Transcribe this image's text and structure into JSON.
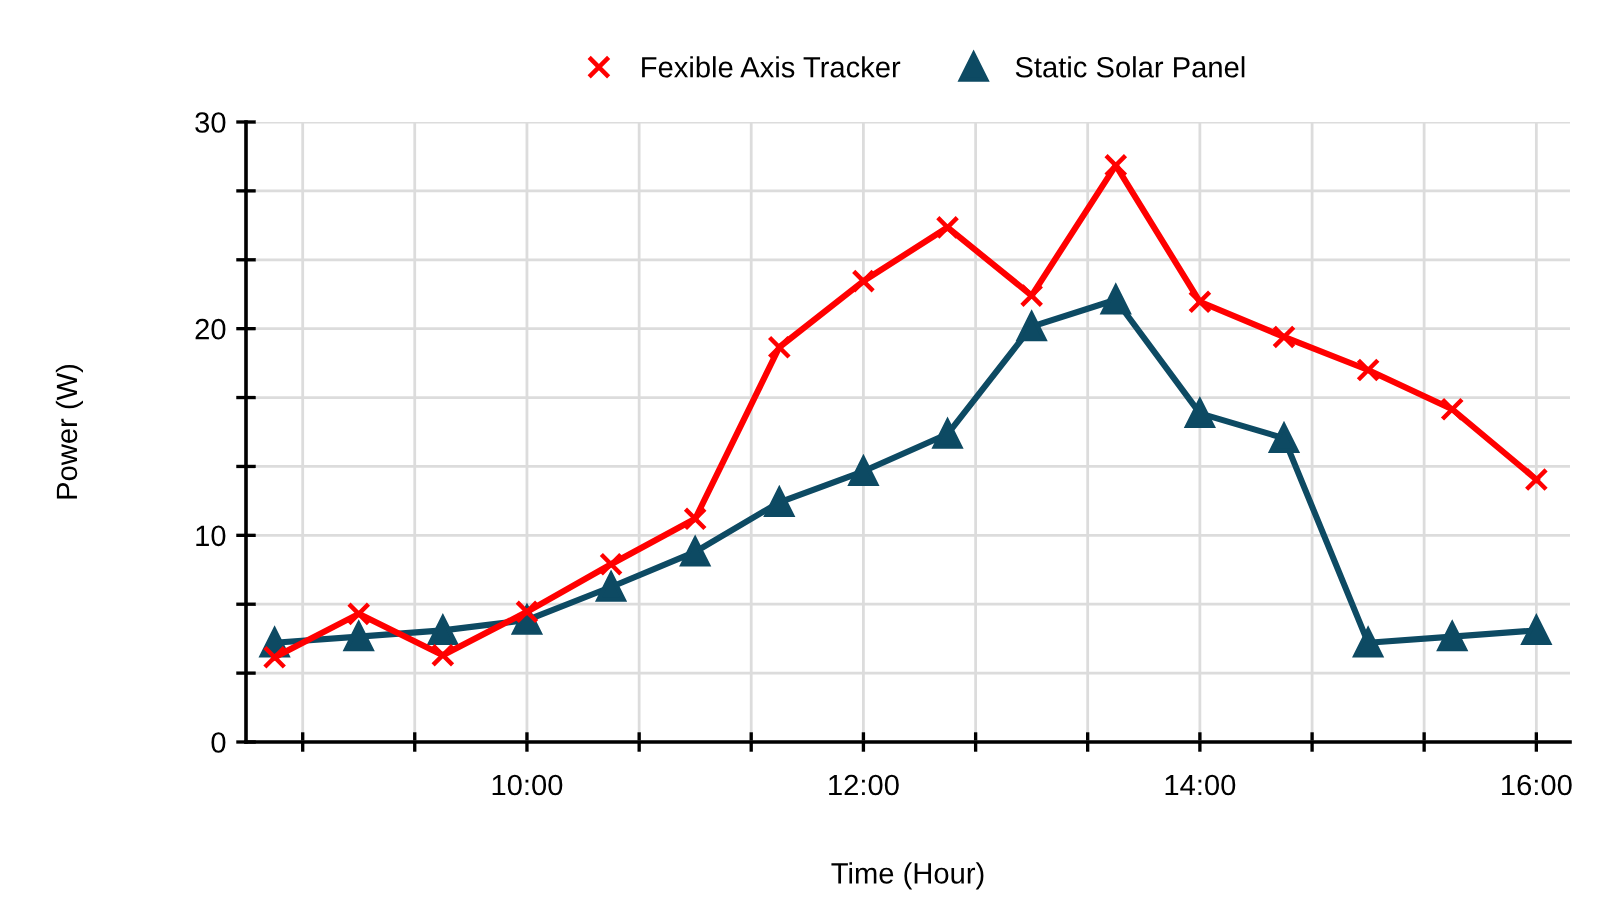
{
  "chart_data": {
    "type": "line",
    "xlabel": "Time (Hour)",
    "ylabel": "Power (W)",
    "x": [
      8.5,
      9,
      9.5,
      10,
      10.5,
      11,
      11.5,
      12,
      12.5,
      13,
      13.5,
      14,
      14.5,
      15,
      15.5,
      16
    ],
    "series": [
      {
        "name": "Fexible Axis Tracker",
        "color": "#ff0000",
        "marker": "cross",
        "values": [
          4.1,
          6.2,
          4.2,
          6.3,
          8.6,
          10.8,
          19.1,
          22.3,
          24.9,
          21.6,
          27.9,
          21.3,
          19.6,
          18.0,
          16.1,
          12.7
        ]
      },
      {
        "name": "Static Solar Panel",
        "color": "#0d4a63",
        "marker": "triangle",
        "values": [
          4.8,
          5.1,
          5.4,
          5.9,
          7.5,
          9.2,
          11.6,
          13.1,
          14.9,
          20.1,
          21.4,
          15.9,
          14.7,
          4.8,
          5.1,
          5.4
        ]
      }
    ],
    "xlim": [
      8.33,
      16.2
    ],
    "xticks": [
      {
        "value": 8.667,
        "label": null
      },
      {
        "value": 9.333,
        "label": null
      },
      {
        "value": 10,
        "label": "10:00"
      },
      {
        "value": 10.667,
        "label": null
      },
      {
        "value": 11.333,
        "label": null
      },
      {
        "value": 12,
        "label": "12:00"
      },
      {
        "value": 12.667,
        "label": null
      },
      {
        "value": 13.333,
        "label": null
      },
      {
        "value": 14,
        "label": "14:00"
      },
      {
        "value": 14.667,
        "label": null
      },
      {
        "value": 15.333,
        "label": null
      },
      {
        "value": 16,
        "label": "16:00"
      }
    ],
    "ylim": [
      0,
      30
    ],
    "yticks": [
      0,
      {
        "value": 3.333,
        "label": null
      },
      {
        "value": 6.667,
        "label": null
      },
      10,
      {
        "value": 13.333,
        "label": null
      },
      {
        "value": 16.667,
        "label": null
      },
      20,
      {
        "value": 23.333,
        "label": null
      },
      {
        "value": 26.667,
        "label": null
      },
      30
    ],
    "grid": true,
    "legend": "top",
    "line_style": "solid"
  }
}
